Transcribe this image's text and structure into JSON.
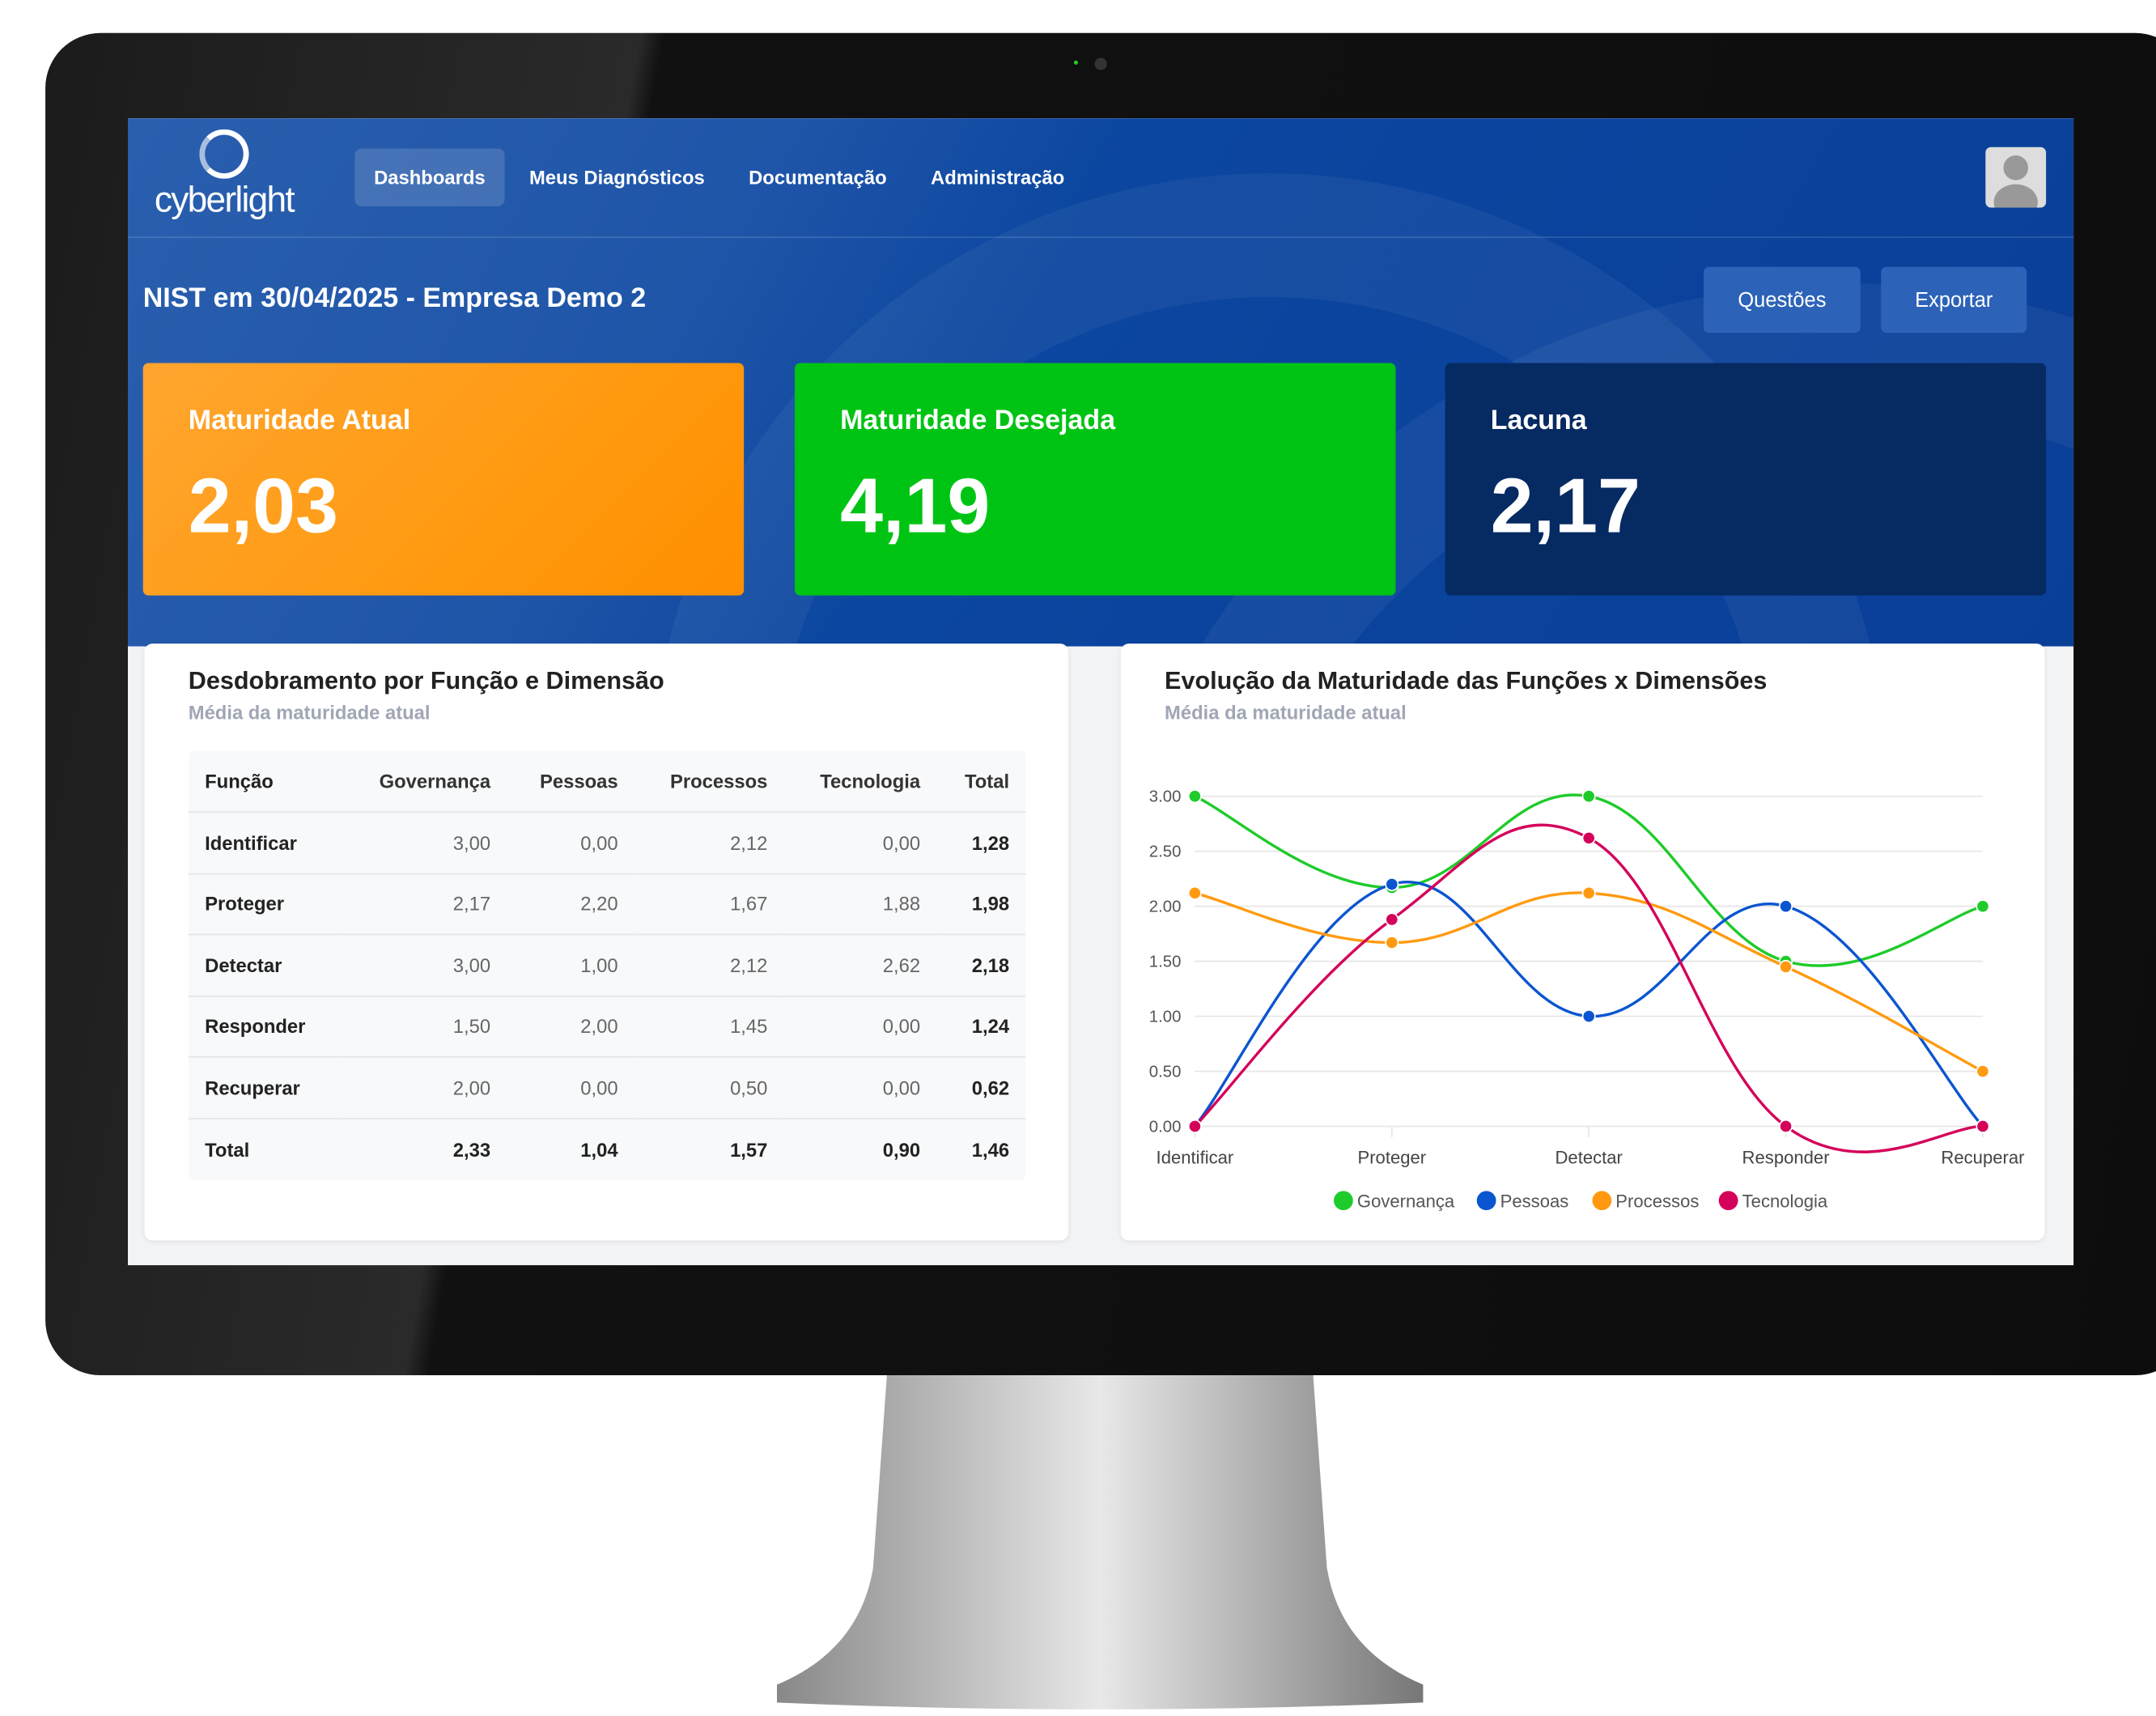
{
  "nav": {
    "logo": "cyberlight",
    "items": [
      "Dashboards",
      "Meus Diagnósticos",
      "Documentação",
      "Administração"
    ],
    "active": "Dashboards"
  },
  "header": {
    "title": "NIST em 30/04/2025 - Empresa Demo 2",
    "buttons": {
      "questions": "Questões",
      "export": "Exportar"
    }
  },
  "cards": [
    {
      "label": "Maturidade Atual",
      "value": "2,03",
      "color": "#ff9a1f"
    },
    {
      "label": "Maturidade Desejada",
      "value": "4,19",
      "color": "#00c414"
    },
    {
      "label": "Lacuna",
      "value": "2,17",
      "color": "#062a62"
    }
  ],
  "table": {
    "title": "Desdobramento por Função e Dimensão",
    "subtitle": "Média da maturidade atual",
    "headers": [
      "Função",
      "Governança",
      "Pessoas",
      "Processos",
      "Tecnologia",
      "Total"
    ],
    "rows": [
      [
        "Identificar",
        "3,00",
        "0,00",
        "2,12",
        "0,00",
        "1,28"
      ],
      [
        "Proteger",
        "2,17",
        "2,20",
        "1,67",
        "1,88",
        "1,98"
      ],
      [
        "Detectar",
        "3,00",
        "1,00",
        "2,12",
        "2,62",
        "2,18"
      ],
      [
        "Responder",
        "1,50",
        "2,00",
        "1,45",
        "0,00",
        "1,24"
      ],
      [
        "Recuperar",
        "2,00",
        "0,00",
        "0,50",
        "0,00",
        "0,62"
      ],
      [
        "Total",
        "2,33",
        "1,04",
        "1,57",
        "0,90",
        "1,46"
      ]
    ]
  },
  "chart": {
    "title": "Evolução da Maturidade das Funções x Dimensões",
    "subtitle": "Média da maturidade atual"
  },
  "chart_data": {
    "type": "line",
    "categories": [
      "Identificar",
      "Proteger",
      "Detectar",
      "Responder",
      "Recuperar"
    ],
    "ylim": [
      0,
      3
    ],
    "yticks": [
      "0.00",
      "0.50",
      "1.00",
      "1.50",
      "2.00",
      "2.50",
      "3.00"
    ],
    "grid": true,
    "legend": "bottom",
    "series": [
      {
        "name": "Governança",
        "color": "#1ecb2a",
        "values": [
          3,
          2.17,
          3,
          1.5,
          2
        ]
      },
      {
        "name": "Pessoas",
        "color": "#0b55d0",
        "values": [
          0,
          2.2,
          1,
          2,
          0
        ]
      },
      {
        "name": "Processos",
        "color": "#ff9a10",
        "values": [
          2.12,
          1.67,
          2.12,
          1.45,
          0.5
        ]
      },
      {
        "name": "Tecnologia",
        "color": "#d4005a",
        "values": [
          0,
          1.88,
          2.62,
          0,
          0
        ]
      }
    ]
  }
}
